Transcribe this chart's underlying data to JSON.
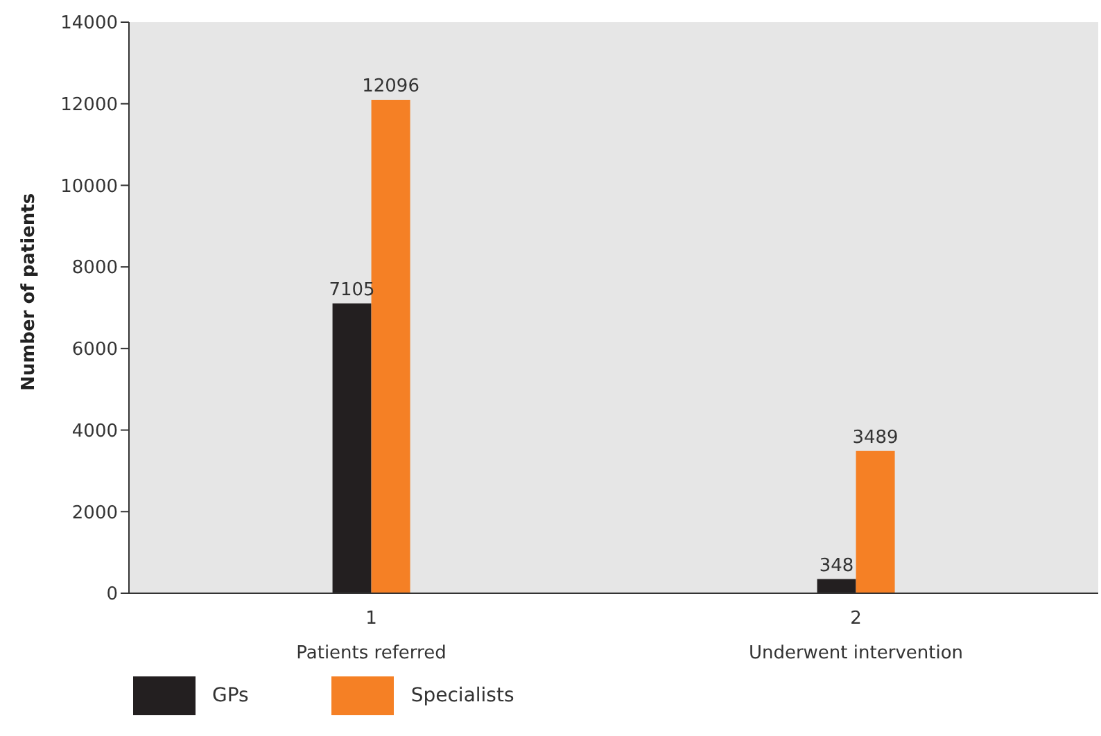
{
  "chart_data": {
    "type": "bar",
    "ylabel": "Number of patients",
    "categories": [
      "1\nPatients referred",
      "2\nUnderwent intervention"
    ],
    "series": [
      {
        "name": "GPs",
        "color": "#231f20",
        "values": [
          7105,
          348
        ]
      },
      {
        "name": "Specialists",
        "color": "#f58025",
        "values": [
          12096,
          3489
        ]
      }
    ],
    "ylim": [
      0,
      14000
    ],
    "yticks": [
      0,
      2000,
      4000,
      6000,
      8000,
      10000,
      12000,
      14000
    ],
    "data_labels": true,
    "grid": false,
    "legend": "bottom"
  }
}
